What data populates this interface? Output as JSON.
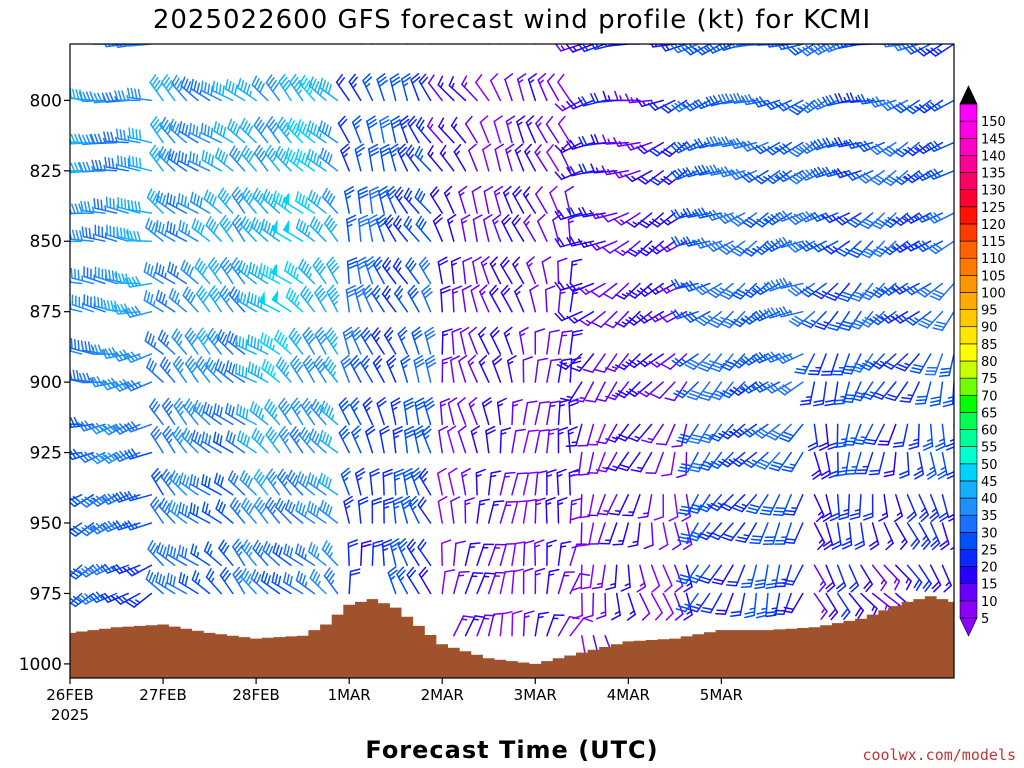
{
  "chart_data": {
    "type": "wind-barb-timeheight",
    "title": "2025022600 GFS forecast wind profile (kt) for KCMI",
    "xlabel": "Forecast Time (UTC)",
    "ylabel": "",
    "x_tick_labels": [
      "26FEB",
      "27FEB",
      "28FEB",
      "1MAR",
      "2MAR",
      "3MAR",
      "4MAR",
      "5MAR"
    ],
    "x_year_label": "2025",
    "y_tick_labels": [
      "800",
      "825",
      "850",
      "875",
      "900",
      "925",
      "950",
      "975",
      "1000"
    ],
    "y_axis": {
      "unit": "hPa",
      "range": [
        780,
        1005
      ],
      "reversed": true
    },
    "x_axis": {
      "range_hours": [
        0,
        228
      ],
      "step_hours": 3
    },
    "levels_hpa": [
      780,
      800,
      815,
      825,
      840,
      850,
      865,
      875,
      890,
      900,
      915,
      925,
      940,
      950,
      965,
      975,
      990
    ],
    "colorbar": {
      "levels": [
        5,
        10,
        15,
        20,
        25,
        30,
        35,
        40,
        45,
        50,
        55,
        60,
        65,
        70,
        75,
        80,
        85,
        90,
        95,
        100,
        105,
        110,
        115,
        120,
        125,
        130,
        135,
        140,
        145,
        150
      ],
      "colors": [
        "#8c00ff",
        "#6a00ff",
        "#2800ff",
        "#0a28ff",
        "#0050ff",
        "#1a70ff",
        "#1e90ff",
        "#14b0ff",
        "#00d2ff",
        "#00ffd2",
        "#00ff96",
        "#00ff50",
        "#00ff00",
        "#70ff00",
        "#c8ff00",
        "#ffff00",
        "#ffe600",
        "#ffc800",
        "#ffaa00",
        "#ff9600",
        "#ff7800",
        "#ff6400",
        "#ff3c00",
        "#ff1400",
        "#ff0032",
        "#ff0064",
        "#ff0096",
        "#ff00c8",
        "#ff00e6",
        "#ff00ff"
      ]
    },
    "surface": {
      "color": "#a0522d",
      "hours": [
        0,
        12,
        24,
        36,
        48,
        60,
        66,
        72,
        78,
        84,
        96,
        108,
        114,
        120,
        132,
        144,
        156,
        168,
        180,
        192,
        204,
        216,
        222,
        228
      ],
      "pressure_hpa": [
        989,
        987,
        986,
        989,
        991,
        990,
        986,
        979,
        977,
        980,
        993,
        998,
        999,
        1000,
        996,
        992,
        991,
        988,
        988,
        987,
        984,
        978,
        976,
        978
      ]
    },
    "wind_regimes": [
      {
        "hours": [
          0,
          24
        ],
        "low_dir": 225,
        "low_spd": 25,
        "mid_dir": 270,
        "mid_spd": 38,
        "top_dir": 275,
        "top_spd": 38
      },
      {
        "hours": [
          24,
          48
        ],
        "low_dir": 320,
        "low_spd": 28,
        "mid_dir": 320,
        "mid_spd": 38,
        "top_dir": 315,
        "top_spd": 38
      },
      {
        "hours": [
          48,
          72
        ],
        "low_dir": 310,
        "low_spd": 30,
        "mid_dir": 310,
        "mid_spd": 45,
        "top_dir": 310,
        "top_spd": 42
      },
      {
        "hours": [
          72,
          96
        ],
        "low_dir": 345,
        "low_spd": 22,
        "mid_dir": 335,
        "mid_spd": 28,
        "top_dir": 330,
        "top_spd": 25
      },
      {
        "hours": [
          96,
          132
        ],
        "low_dir": 20,
        "low_spd": 12,
        "mid_dir": 350,
        "mid_spd": 15,
        "top_dir": 330,
        "top_spd": 12
      },
      {
        "hours": [
          132,
          162
        ],
        "low_dir": 150,
        "low_spd": 12,
        "mid_dir": 230,
        "mid_spd": 15,
        "top_dir": 255,
        "top_spd": 18
      },
      {
        "hours": [
          162,
          192
        ],
        "low_dir": 200,
        "low_spd": 22,
        "mid_dir": 245,
        "mid_spd": 30,
        "top_dir": 260,
        "top_spd": 30
      },
      {
        "hours": [
          192,
          228
        ],
        "low_dir": 120,
        "low_spd": 15,
        "mid_dir": 220,
        "mid_spd": 28,
        "top_dir": 250,
        "top_spd": 28
      }
    ]
  },
  "credit": "coolwx.com/models"
}
